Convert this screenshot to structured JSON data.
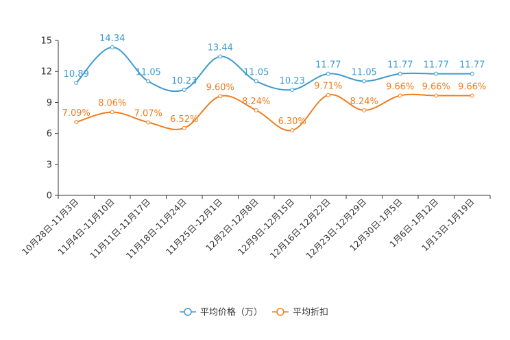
{
  "chart_data": {
    "type": "line",
    "title": "",
    "xlabel": "",
    "ylabel": "",
    "ylim": [
      0,
      15
    ],
    "yticks": [
      0,
      3,
      6,
      9,
      12,
      15
    ],
    "grid": false,
    "legend_position": "bottom-center",
    "categories": [
      "10月28日-11月3日",
      "11月4日-11月10日",
      "11月11日-11月17日",
      "11月18日-11月24日",
      "11月25日-12月1日",
      "12月2日-12月8日",
      "12月9日-12月15日",
      "12月16日-12月22日",
      "12月23日-12月29日",
      "12月30日-1月5日",
      "1月6日-1月12日",
      "1月13日-1月19日"
    ],
    "series": [
      {
        "name": "平均价格（万）",
        "color": "#3a9ad1",
        "values": [
          10.89,
          14.34,
          11.05,
          10.23,
          13.44,
          11.05,
          10.23,
          11.77,
          11.05,
          11.77,
          11.77,
          11.77
        ],
        "labels": [
          "10.89",
          "14.34",
          "11.05",
          "10.23",
          "13.44",
          "11.05",
          "10.23",
          "11.77",
          "11.05",
          "11.77",
          "11.77",
          "11.77"
        ]
      },
      {
        "name": "平均折扣",
        "color": "#f07c1c",
        "values": [
          7.09,
          8.06,
          7.07,
          6.52,
          9.6,
          8.24,
          6.3,
          9.71,
          8.24,
          9.66,
          9.66,
          9.66
        ],
        "labels": [
          "7.09%",
          "8.06%",
          "7.07%",
          "6.52%",
          "9.60%",
          "8.24%",
          "6.30%",
          "9.71%",
          "8.24%",
          "9.66%",
          "9.66%",
          "9.66%"
        ]
      }
    ]
  }
}
